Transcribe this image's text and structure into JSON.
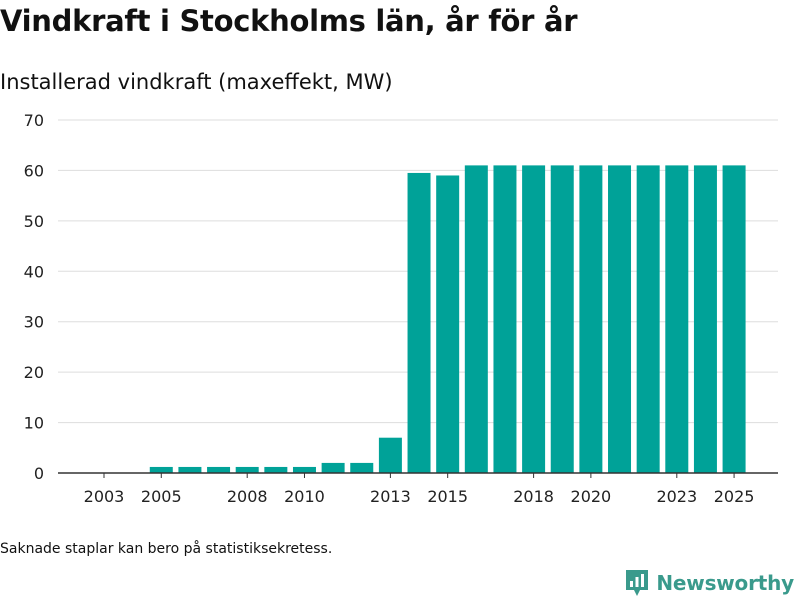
{
  "title": "Vindkraft i Stockholms län, år för år",
  "subtitle": "Installerad vindkraft (maxeffekt, MW)",
  "note": "Saknade staplar kan bero på statistiksekretess.",
  "brand": {
    "name": "Newsworthy",
    "icon": "newsworthy-logo-icon"
  },
  "colors": {
    "bar": "#00a298",
    "grid": "#dddddd",
    "axis": "#333333",
    "brand": "#3a9a8c"
  },
  "chart_data": {
    "type": "bar",
    "title": "Vindkraft i Stockholms län, år för år",
    "subtitle": "Installerad vindkraft (maxeffekt, MW)",
    "xlabel": "",
    "ylabel": "",
    "ylim": [
      0,
      70
    ],
    "yticks": [
      0,
      10,
      20,
      30,
      40,
      50,
      60,
      70
    ],
    "grid": true,
    "legend": "none",
    "categories": [
      "2003",
      "2004",
      "2005",
      "2006",
      "2007",
      "2008",
      "2009",
      "2010",
      "2011",
      "2012",
      "2013",
      "2014",
      "2015",
      "2016",
      "2017",
      "2018",
      "2019",
      "2020",
      "2021",
      "2022",
      "2023",
      "2024",
      "2025"
    ],
    "xtick_labels": [
      "2003",
      "2005",
      "2008",
      "2010",
      "2013",
      "2015",
      "2018",
      "2020",
      "2023",
      "2025"
    ],
    "values": [
      0,
      0,
      1.2,
      1.2,
      1.2,
      1.2,
      1.2,
      1.2,
      2,
      2,
      7,
      59.5,
      59,
      61,
      61,
      61,
      61,
      61,
      61,
      61,
      61,
      61,
      61
    ]
  }
}
